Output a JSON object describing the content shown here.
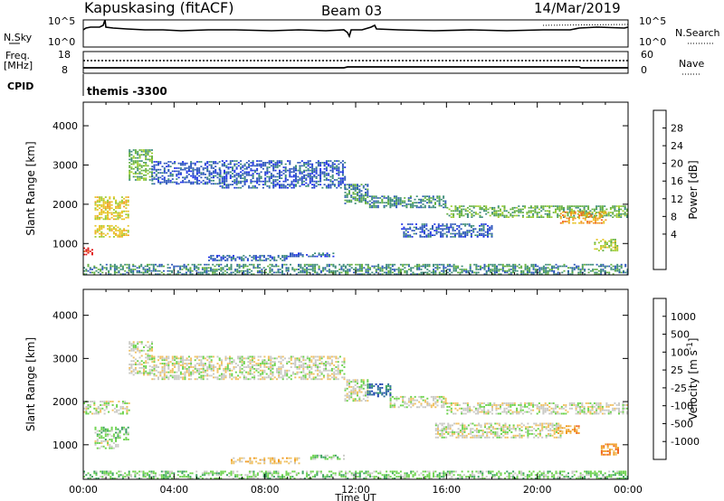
{
  "header": {
    "station": "Kapuskasing (fitACF)",
    "beam": "Beam 03",
    "date": "14/Mar/2019"
  },
  "summary_panels": {
    "sky_label": "N.Sky",
    "search_label": "N.Search",
    "freq_label_line1": "Freq.",
    "freq_label_line2": "[MHz]",
    "nave_label": "Nave",
    "cpid_label": "CPID",
    "cpid_value": "themis -3300",
    "noise_left_ticks": [
      "10^5",
      "10^0"
    ],
    "noise_right_ticks": [
      "10^5",
      "10^0"
    ],
    "freq_left_ticks": [
      "18",
      "8"
    ],
    "freq_right_ticks": [
      "60",
      "0"
    ]
  },
  "chart_data": [
    {
      "type": "heatmap",
      "name": "Power",
      "ylabel": "Slant Range [km]",
      "ylim": [
        200,
        4600
      ],
      "yticks": [
        "1000",
        "2000",
        "3000",
        "4000"
      ],
      "xlim": [
        "00:00",
        "24:00"
      ],
      "colorbar": {
        "label": "Power [dB]",
        "ticks": [
          "4",
          "8",
          "12",
          "16",
          "20",
          "24",
          "28"
        ],
        "colors": [
          "#1a2ee6",
          "#2a55b8",
          "#3a8a78",
          "#5fae3c",
          "#9bcb2c",
          "#e6c21e",
          "#f09a1c",
          "#f0621a",
          "#e01818"
        ]
      },
      "bands": [
        {
          "t": [
            0.5,
            2.0
          ],
          "r": [
            1600,
            2200
          ],
          "level": 5
        },
        {
          "t": [
            2.0,
            3.0
          ],
          "r": [
            2600,
            3400
          ],
          "level": 3
        },
        {
          "t": [
            3.0,
            6.0
          ],
          "r": [
            2500,
            3100
          ],
          "level": 1
        },
        {
          "t": [
            6.0,
            11.5
          ],
          "r": [
            2400,
            3100
          ],
          "level": 1
        },
        {
          "t": [
            11.5,
            12.5
          ],
          "r": [
            2000,
            2500
          ],
          "level": 2
        },
        {
          "t": [
            12.5,
            16.0
          ],
          "r": [
            1900,
            2200
          ],
          "level": 2
        },
        {
          "t": [
            14.0,
            18.0
          ],
          "r": [
            1150,
            1500
          ],
          "level": 1
        },
        {
          "t": [
            16.0,
            24.0
          ],
          "r": [
            1650,
            1950
          ],
          "level": 3
        },
        {
          "t": [
            21.0,
            23.0
          ],
          "r": [
            1500,
            1800
          ],
          "level": 6
        },
        {
          "t": [
            22.5,
            23.5
          ],
          "r": [
            800,
            1100
          ],
          "level": 4
        },
        {
          "t": [
            0.0,
            0.4
          ],
          "r": [
            700,
            900
          ],
          "level": 8
        },
        {
          "t": [
            0.5,
            2.0
          ],
          "r": [
            1150,
            1450
          ],
          "level": 5
        },
        {
          "t": [
            5.5,
            9.0
          ],
          "r": [
            550,
            700
          ],
          "level": 1
        },
        {
          "t": [
            9.0,
            11.0
          ],
          "r": [
            650,
            750
          ],
          "level": 1
        },
        {
          "t": [
            0.0,
            24.0
          ],
          "r": [
            200,
            450
          ],
          "level": 2
        }
      ]
    },
    {
      "type": "heatmap",
      "name": "Velocity",
      "ylabel": "Slant Range [km]",
      "ylim": [
        200,
        4600
      ],
      "yticks": [
        "1000",
        "2000",
        "3000",
        "4000"
      ],
      "xlim": [
        "00:00",
        "24:00"
      ],
      "xticks": [
        "00:00",
        "04:00",
        "08:00",
        "12:00",
        "16:00",
        "20:00",
        "00:00"
      ],
      "xlabel": "Time UT",
      "colorbar": {
        "label": "Velocity [m s",
        "label_sup": "-1",
        "label_end": "]",
        "ticks": [
          "1000",
          "500",
          "100",
          "25",
          "-25",
          "-100",
          "-500",
          "-1000"
        ],
        "colors": [
          "#1a3fb0",
          "#2e6e9a",
          "#36a05a",
          "#6ad24a",
          "#c9c9c4",
          "#f0c060",
          "#f09a1c",
          "#f0621a",
          "#e01818"
        ]
      },
      "bands": [
        {
          "t": [
            0.0,
            2.0
          ],
          "r": [
            1700,
            2000
          ],
          "level": 4
        },
        {
          "t": [
            2.0,
            3.0
          ],
          "r": [
            2600,
            3400
          ],
          "level": 4
        },
        {
          "t": [
            3.0,
            11.5
          ],
          "r": [
            2500,
            3050
          ],
          "level": 4
        },
        {
          "t": [
            11.5,
            12.5
          ],
          "r": [
            2000,
            2500
          ],
          "level": 4
        },
        {
          "t": [
            12.5,
            13.5
          ],
          "r": [
            2100,
            2400
          ],
          "level": 1
        },
        {
          "t": [
            13.5,
            16.0
          ],
          "r": [
            1850,
            2100
          ],
          "level": 4
        },
        {
          "t": [
            16.0,
            24.0
          ],
          "r": [
            1700,
            1950
          ],
          "level": 4
        },
        {
          "t": [
            15.5,
            21.0
          ],
          "r": [
            1150,
            1500
          ],
          "level": 4
        },
        {
          "t": [
            0.5,
            2.0
          ],
          "r": [
            1100,
            1400
          ],
          "level": 3
        },
        {
          "t": [
            0.5,
            1.5
          ],
          "r": [
            900,
            1100
          ],
          "level": 4
        },
        {
          "t": [
            20.8,
            21.8
          ],
          "r": [
            1250,
            1450
          ],
          "level": 6
        },
        {
          "t": [
            22.8,
            23.6
          ],
          "r": [
            750,
            1000
          ],
          "level": 6
        },
        {
          "t": [
            6.5,
            9.5
          ],
          "r": [
            550,
            700
          ],
          "level": 5
        },
        {
          "t": [
            10.0,
            11.5
          ],
          "r": [
            650,
            750
          ],
          "level": 3
        },
        {
          "t": [
            0.0,
            24.0
          ],
          "r": [
            200,
            400
          ],
          "level": 3
        }
      ]
    }
  ]
}
